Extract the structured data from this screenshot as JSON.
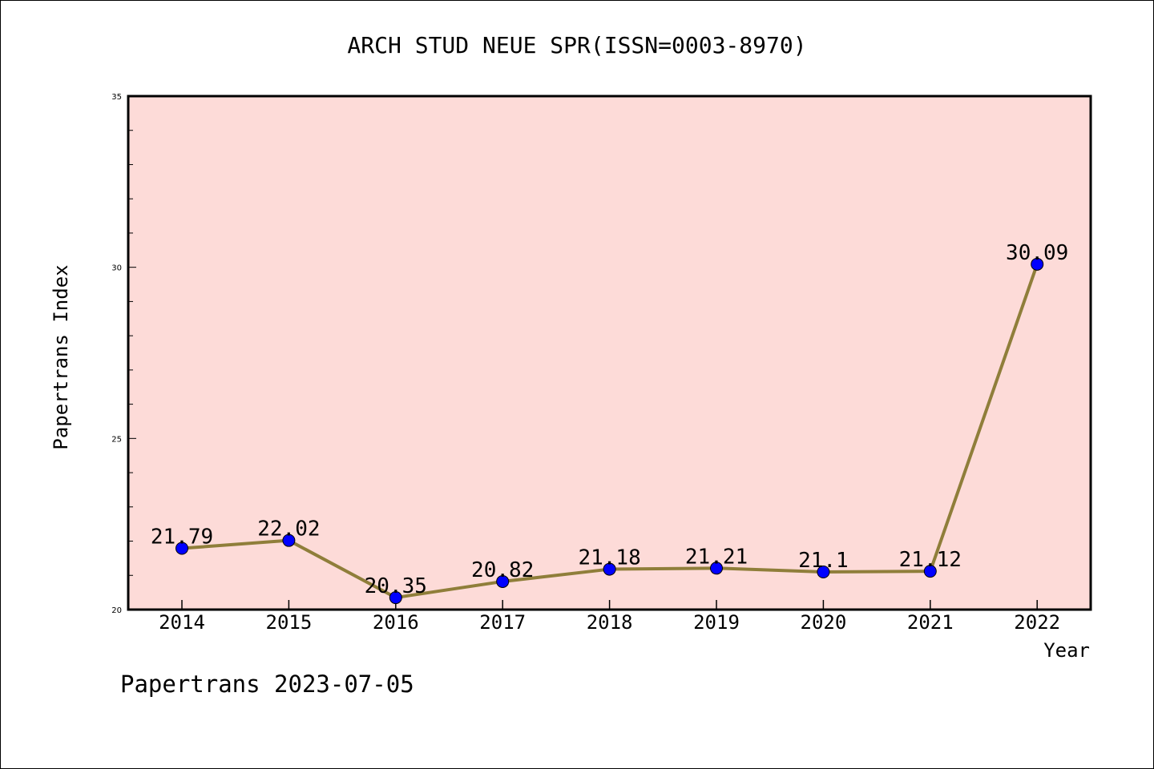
{
  "chart_data": {
    "type": "line",
    "title": "ARCH STUD NEUE SPR(ISSN=0003-8970)",
    "xlabel": "Year",
    "ylabel": "Papertrans Index",
    "x": [
      "2014",
      "2015",
      "2016",
      "2017",
      "2018",
      "2019",
      "2020",
      "2021",
      "2022"
    ],
    "series": [
      {
        "values": [
          21.79,
          22.02,
          20.35,
          20.82,
          21.18,
          21.21,
          21.1,
          21.12,
          30.09
        ],
        "labels": [
          "21.79",
          "22.02",
          "20.35",
          "20.82",
          "21.18",
          "21.21",
          "21.1",
          "21.12",
          "30.09"
        ]
      }
    ],
    "ylim": [
      20,
      35
    ],
    "yticks": [
      "20",
      "25",
      "30",
      "35"
    ],
    "grid": false,
    "line_color": "#8f7e3a",
    "marker_color": "#0000ff",
    "plot_background": "#fddbd8"
  },
  "footer": {
    "text": "Papertrans 2023-07-05"
  }
}
